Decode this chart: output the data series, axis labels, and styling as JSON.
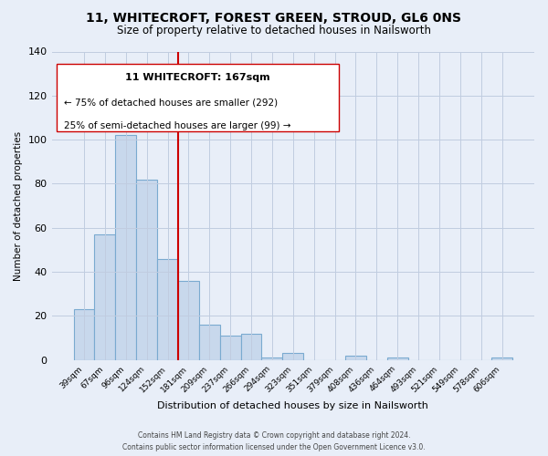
{
  "title_line1": "11, WHITECROFT, FOREST GREEN, STROUD, GL6 0NS",
  "title_line2": "Size of property relative to detached houses in Nailsworth",
  "xlabel": "Distribution of detached houses by size in Nailsworth",
  "ylabel": "Number of detached properties",
  "bar_labels": [
    "39sqm",
    "67sqm",
    "96sqm",
    "124sqm",
    "152sqm",
    "181sqm",
    "209sqm",
    "237sqm",
    "266sqm",
    "294sqm",
    "323sqm",
    "351sqm",
    "379sqm",
    "408sqm",
    "436sqm",
    "464sqm",
    "493sqm",
    "521sqm",
    "549sqm",
    "578sqm",
    "606sqm"
  ],
  "bar_values": [
    23,
    57,
    102,
    82,
    46,
    36,
    16,
    11,
    12,
    1,
    3,
    0,
    0,
    2,
    0,
    1,
    0,
    0,
    0,
    0,
    1
  ],
  "bar_color": "#c8d8ec",
  "bar_edge_color": "#7aaad0",
  "vline_x": 4.5,
  "vline_color": "#cc0000",
  "ylim": [
    0,
    140
  ],
  "yticks": [
    0,
    20,
    40,
    60,
    80,
    100,
    120,
    140
  ],
  "annotation_text_line1": "11 WHITECROFT: 167sqm",
  "annotation_text_line2": "← 75% of detached houses are smaller (292)",
  "annotation_text_line3": "25% of semi-detached houses are larger (99) →",
  "footer_line1": "Contains HM Land Registry data © Crown copyright and database right 2024.",
  "footer_line2": "Contains public sector information licensed under the Open Government Licence v3.0.",
  "background_color": "#e8eef8"
}
